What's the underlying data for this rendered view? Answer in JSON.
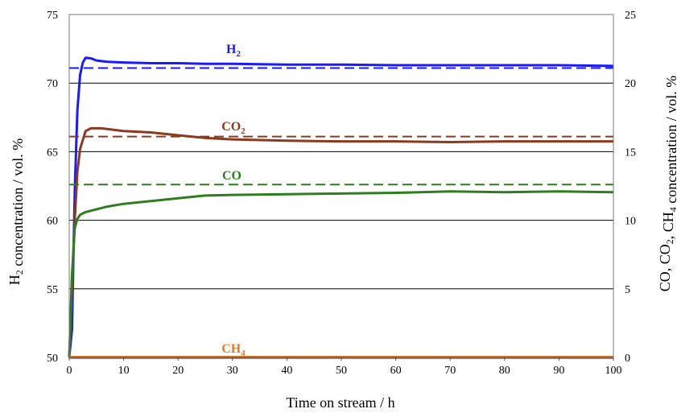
{
  "chart_data": {
    "type": "line",
    "xlabel": "Time on stream / h",
    "ylabel_left": "H2 concentration / vol. %",
    "ylabel_right": "CO, CO2, CH4 concentration / vol. %",
    "xlim": [
      0,
      100
    ],
    "ylim_left": [
      50,
      75
    ],
    "ylim_right": [
      0,
      25
    ],
    "x_ticks": [
      0,
      10,
      20,
      30,
      40,
      50,
      60,
      70,
      80,
      90,
      100
    ],
    "y_left_ticks": [
      50,
      55,
      60,
      65,
      70,
      75
    ],
    "y_right_ticks": [
      0,
      5,
      10,
      15,
      20,
      25
    ],
    "grid": "horizontal",
    "series": [
      {
        "name": "H2",
        "axis": "left",
        "color": "#1a1aff",
        "equilibrium": 71.1,
        "x": [
          0,
          0.5,
          1,
          1.5,
          2,
          2.5,
          3,
          4,
          5,
          7,
          10,
          15,
          20,
          25,
          30,
          40,
          50,
          60,
          70,
          80,
          90,
          100
        ],
        "y": [
          50,
          52,
          62,
          68,
          70.6,
          71.5,
          71.85,
          71.8,
          71.65,
          71.55,
          71.5,
          71.45,
          71.45,
          71.4,
          71.4,
          71.35,
          71.35,
          71.3,
          71.3,
          71.3,
          71.3,
          71.25
        ]
      },
      {
        "name": "CO2",
        "axis": "right",
        "color": "#8b3a1e",
        "equilibrium": 16.1,
        "x": [
          0,
          0.5,
          1,
          1.5,
          2,
          3,
          4,
          6,
          10,
          15,
          20,
          25,
          30,
          40,
          50,
          60,
          70,
          80,
          90,
          100
        ],
        "y": [
          0,
          5,
          10,
          13.5,
          15.2,
          16.5,
          16.7,
          16.7,
          16.5,
          16.4,
          16.2,
          16.0,
          15.9,
          15.8,
          15.75,
          15.75,
          15.7,
          15.75,
          15.75,
          15.75
        ]
      },
      {
        "name": "CO",
        "axis": "right",
        "color": "#2e7d1e",
        "equilibrium": 12.6,
        "x": [
          0,
          0.5,
          1,
          1.5,
          2,
          3,
          5,
          7,
          10,
          15,
          20,
          25,
          30,
          40,
          50,
          60,
          70,
          80,
          90,
          100
        ],
        "y": [
          0,
          6,
          9.4,
          10.1,
          10.4,
          10.6,
          10.8,
          11.0,
          11.2,
          11.4,
          11.6,
          11.8,
          11.85,
          11.9,
          11.95,
          12.0,
          12.1,
          12.05,
          12.1,
          12.05
        ]
      },
      {
        "name": "CH4",
        "axis": "right",
        "color": "#e07b30",
        "x": [
          0,
          100
        ],
        "y": [
          0,
          0
        ]
      }
    ],
    "labels": {
      "H2": {
        "main": "H",
        "sub": "2"
      },
      "CO2": {
        "main": "CO",
        "sub": "2"
      },
      "CO": {
        "main": "CO",
        "sub": ""
      },
      "CH4": {
        "main": "CH",
        "sub": "4"
      }
    }
  }
}
